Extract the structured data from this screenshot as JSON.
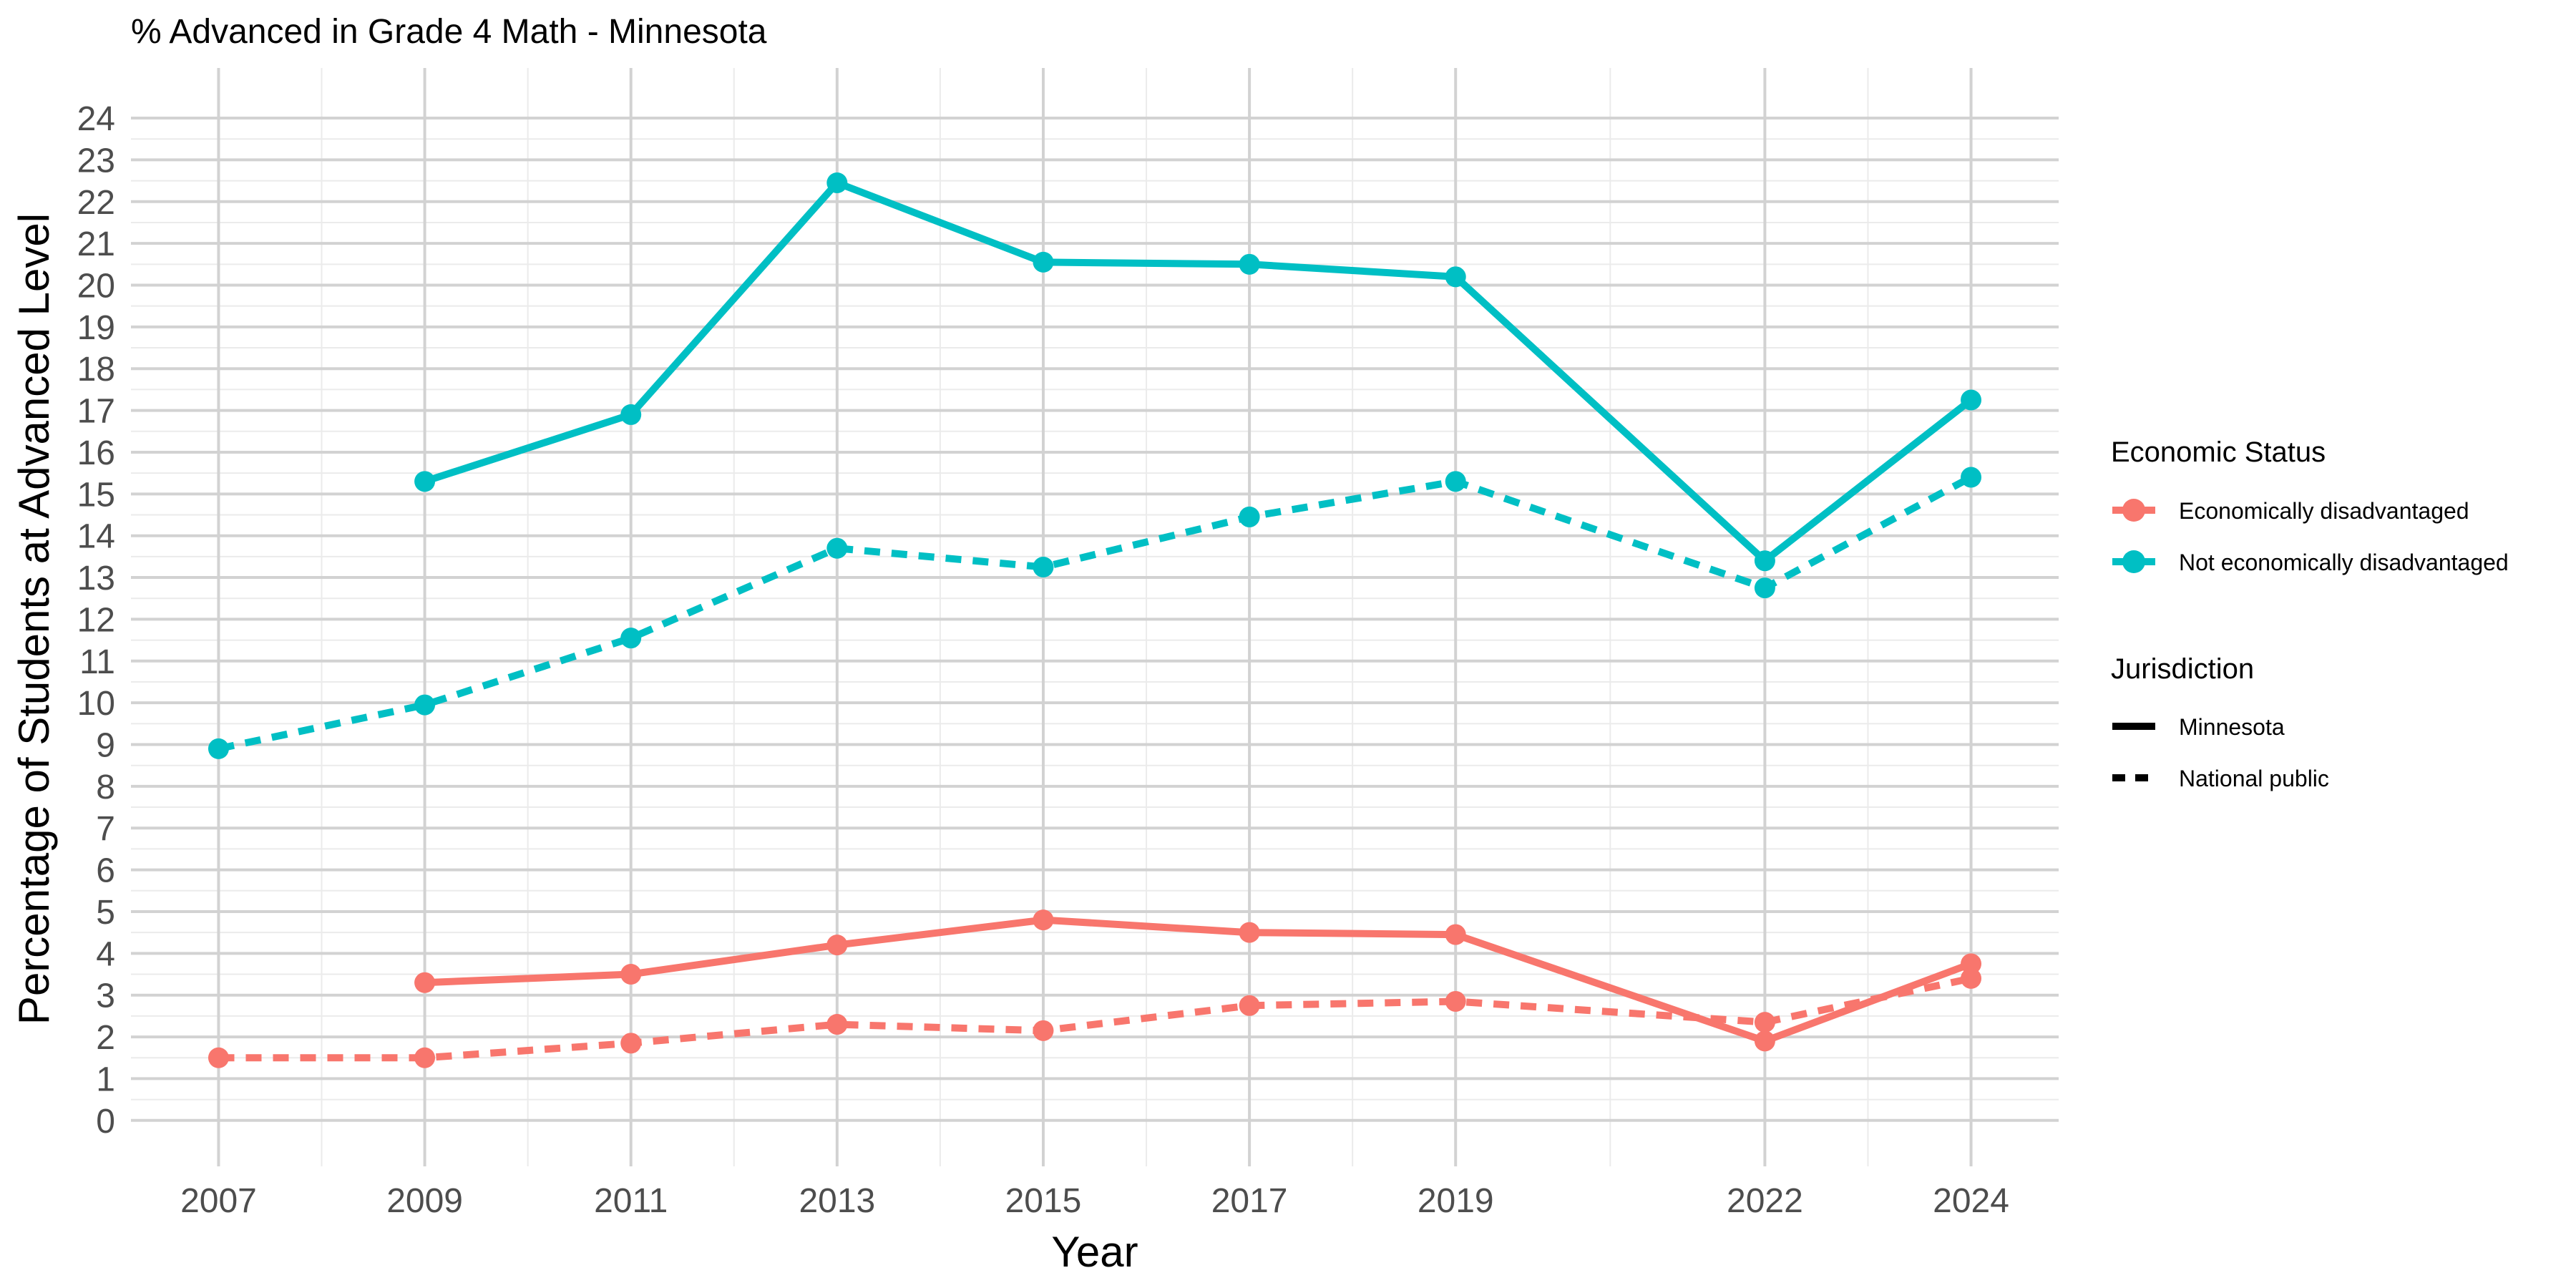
{
  "chart_data": {
    "type": "line",
    "title": "% Advanced in Grade 4 Math - Minnesota",
    "xlabel": "Year",
    "ylabel": "Percentage of Students at Advanced Level",
    "x": [
      2007,
      2009,
      2011,
      2013,
      2015,
      2017,
      2019,
      2022,
      2024
    ],
    "x_ticks": [
      "2007",
      "2009",
      "2011",
      "2013",
      "2015",
      "2017",
      "2019",
      "2022",
      "2024"
    ],
    "xlim": [
      2006.15,
      2024.85
    ],
    "ylim": [
      -1.1,
      25.2
    ],
    "y_ticks": [
      0,
      1,
      2,
      3,
      4,
      5,
      6,
      7,
      8,
      9,
      10,
      11,
      12,
      13,
      14,
      15,
      16,
      17,
      18,
      19,
      20,
      21,
      22,
      23,
      24
    ],
    "grid": true,
    "legend_position": "right",
    "colors": {
      "Economically disadvantaged": "#F8766D",
      "Not economically disadvantaged": "#00BFC4"
    },
    "series": [
      {
        "status": "Not economically disadvantaged",
        "jurisdiction": "Minnesota",
        "line": "solid",
        "points": [
          [
            2009,
            15.3
          ],
          [
            2011,
            16.9
          ],
          [
            2013,
            22.45
          ],
          [
            2015,
            20.55
          ],
          [
            2017,
            20.5
          ],
          [
            2019,
            20.2
          ],
          [
            2022,
            13.4
          ],
          [
            2024,
            17.25
          ]
        ]
      },
      {
        "status": "Not economically disadvantaged",
        "jurisdiction": "National public",
        "line": "dashed",
        "points": [
          [
            2007,
            8.9
          ],
          [
            2009,
            9.95
          ],
          [
            2011,
            11.55
          ],
          [
            2013,
            13.7
          ],
          [
            2015,
            13.25
          ],
          [
            2017,
            14.45
          ],
          [
            2019,
            15.3
          ],
          [
            2022,
            12.75
          ],
          [
            2024,
            15.4
          ]
        ]
      },
      {
        "status": "Economically disadvantaged",
        "jurisdiction": "Minnesota",
        "line": "solid",
        "points": [
          [
            2009,
            3.3
          ],
          [
            2011,
            3.5
          ],
          [
            2013,
            4.2
          ],
          [
            2015,
            4.8
          ],
          [
            2017,
            4.5
          ],
          [
            2019,
            4.45
          ],
          [
            2022,
            1.9
          ],
          [
            2024,
            3.75
          ]
        ]
      },
      {
        "status": "Economically disadvantaged",
        "jurisdiction": "National public",
        "line": "dashed",
        "points": [
          [
            2007,
            1.5
          ],
          [
            2009,
            1.5
          ],
          [
            2011,
            1.85
          ],
          [
            2013,
            2.3
          ],
          [
            2015,
            2.15
          ],
          [
            2017,
            2.75
          ],
          [
            2019,
            2.85
          ],
          [
            2022,
            2.35
          ],
          [
            2024,
            3.4
          ]
        ]
      }
    ],
    "legend": {
      "color_title": "Economic Status",
      "color_items": [
        "Economically disadvantaged",
        "Not economically disadvantaged"
      ],
      "linetype_title": "Jurisdiction",
      "linetype_items": [
        "Minnesota",
        "National public"
      ]
    }
  }
}
